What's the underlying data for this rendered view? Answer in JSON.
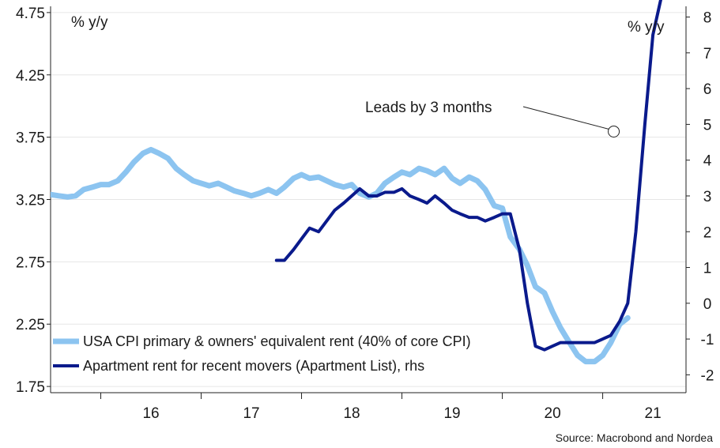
{
  "chart_data": {
    "type": "line",
    "left_unit": "% y/y",
    "right_unit": "% y/y",
    "x_ticks": [
      "16",
      "17",
      "18",
      "19",
      "20",
      "21"
    ],
    "left_axis": {
      "ylim": [
        1.7,
        4.8
      ],
      "ticks": [
        "1.75",
        "2.25",
        "2.75",
        "3.25",
        "3.75",
        "4.25",
        "4.75"
      ]
    },
    "right_axis": {
      "ylim": [
        -2.5,
        8.3
      ],
      "ticks": [
        "-2",
        "-1",
        "0",
        "1",
        "2",
        "3",
        "4",
        "5",
        "6",
        "7",
        "8"
      ]
    },
    "annotation": {
      "text": "Leads by 3 months",
      "x": 2021.11,
      "y": 4.8,
      "axis": "right"
    },
    "source": "Source: Macrobond and Nordea",
    "legend_position": "bottom-left",
    "series": [
      {
        "name": "USA CPI primary & owners' equivalent rent (40% of core CPI)",
        "axis": "left",
        "color": "#8cc4f0",
        "points": [
          [
            2015.5,
            3.29
          ],
          [
            2015.58,
            3.28
          ],
          [
            2015.67,
            3.27
          ],
          [
            2015.75,
            3.28
          ],
          [
            2015.83,
            3.33
          ],
          [
            2015.92,
            3.35
          ],
          [
            2016.0,
            3.37
          ],
          [
            2016.08,
            3.37
          ],
          [
            2016.17,
            3.4
          ],
          [
            2016.25,
            3.47
          ],
          [
            2016.33,
            3.55
          ],
          [
            2016.42,
            3.62
          ],
          [
            2016.5,
            3.65
          ],
          [
            2016.58,
            3.62
          ],
          [
            2016.67,
            3.58
          ],
          [
            2016.75,
            3.5
          ],
          [
            2016.83,
            3.45
          ],
          [
            2016.92,
            3.4
          ],
          [
            2017.0,
            3.38
          ],
          [
            2017.08,
            3.36
          ],
          [
            2017.17,
            3.38
          ],
          [
            2017.25,
            3.35
          ],
          [
            2017.33,
            3.32
          ],
          [
            2017.42,
            3.3
          ],
          [
            2017.5,
            3.28
          ],
          [
            2017.58,
            3.3
          ],
          [
            2017.67,
            3.33
          ],
          [
            2017.75,
            3.3
          ],
          [
            2017.83,
            3.35
          ],
          [
            2017.92,
            3.42
          ],
          [
            2018.0,
            3.45
          ],
          [
            2018.08,
            3.42
          ],
          [
            2018.17,
            3.43
          ],
          [
            2018.25,
            3.4
          ],
          [
            2018.33,
            3.37
          ],
          [
            2018.42,
            3.35
          ],
          [
            2018.5,
            3.37
          ],
          [
            2018.58,
            3.3
          ],
          [
            2018.67,
            3.27
          ],
          [
            2018.75,
            3.3
          ],
          [
            2018.83,
            3.38
          ],
          [
            2018.92,
            3.43
          ],
          [
            2019.0,
            3.47
          ],
          [
            2019.08,
            3.45
          ],
          [
            2019.17,
            3.5
          ],
          [
            2019.25,
            3.48
          ],
          [
            2019.33,
            3.45
          ],
          [
            2019.42,
            3.5
          ],
          [
            2019.5,
            3.42
          ],
          [
            2019.58,
            3.38
          ],
          [
            2019.67,
            3.43
          ],
          [
            2019.75,
            3.4
          ],
          [
            2019.83,
            3.33
          ],
          [
            2019.92,
            3.2
          ],
          [
            2020.0,
            3.18
          ],
          [
            2020.08,
            2.95
          ],
          [
            2020.17,
            2.85
          ],
          [
            2020.25,
            2.72
          ],
          [
            2020.33,
            2.55
          ],
          [
            2020.42,
            2.5
          ],
          [
            2020.5,
            2.35
          ],
          [
            2020.58,
            2.22
          ],
          [
            2020.67,
            2.1
          ],
          [
            2020.75,
            2.0
          ],
          [
            2020.83,
            1.95
          ],
          [
            2020.92,
            1.95
          ],
          [
            2021.0,
            2.0
          ],
          [
            2021.08,
            2.1
          ],
          [
            2021.17,
            2.25
          ],
          [
            2021.25,
            2.3
          ]
        ]
      },
      {
        "name": "Apartment rent for recent movers (Apartment List), rhs",
        "axis": "right",
        "color": "#0a1a8c",
        "points": [
          [
            2017.75,
            1.2
          ],
          [
            2017.83,
            1.2
          ],
          [
            2017.92,
            1.5
          ],
          [
            2018.0,
            1.8
          ],
          [
            2018.08,
            2.1
          ],
          [
            2018.17,
            2.0
          ],
          [
            2018.25,
            2.3
          ],
          [
            2018.33,
            2.6
          ],
          [
            2018.42,
            2.8
          ],
          [
            2018.5,
            3.0
          ],
          [
            2018.58,
            3.2
          ],
          [
            2018.67,
            3.0
          ],
          [
            2018.75,
            3.0
          ],
          [
            2018.83,
            3.1
          ],
          [
            2018.92,
            3.1
          ],
          [
            2019.0,
            3.2
          ],
          [
            2019.08,
            3.0
          ],
          [
            2019.17,
            2.9
          ],
          [
            2019.25,
            2.8
          ],
          [
            2019.33,
            3.0
          ],
          [
            2019.42,
            2.8
          ],
          [
            2019.5,
            2.6
          ],
          [
            2019.58,
            2.5
          ],
          [
            2019.67,
            2.4
          ],
          [
            2019.75,
            2.4
          ],
          [
            2019.83,
            2.3
          ],
          [
            2019.92,
            2.4
          ],
          [
            2020.0,
            2.5
          ],
          [
            2020.08,
            2.5
          ],
          [
            2020.17,
            1.5
          ],
          [
            2020.25,
            0.0
          ],
          [
            2020.33,
            -1.2
          ],
          [
            2020.42,
            -1.3
          ],
          [
            2020.5,
            -1.2
          ],
          [
            2020.58,
            -1.1
          ],
          [
            2020.67,
            -1.1
          ],
          [
            2020.75,
            -1.1
          ],
          [
            2020.83,
            -1.1
          ],
          [
            2020.92,
            -1.1
          ],
          [
            2021.0,
            -1.0
          ],
          [
            2021.08,
            -0.9
          ],
          [
            2021.17,
            -0.5
          ],
          [
            2021.25,
            0.0
          ],
          [
            2021.33,
            2.0
          ],
          [
            2021.42,
            5.0
          ],
          [
            2021.5,
            7.5
          ],
          [
            2021.58,
            8.5
          ]
        ]
      }
    ]
  }
}
